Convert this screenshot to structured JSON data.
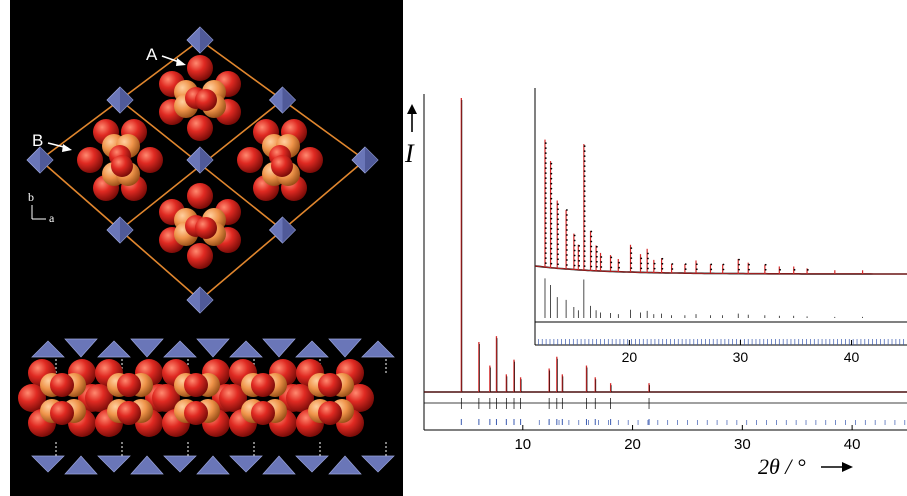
{
  "crystal": {
    "label_a": "A",
    "label_b": "B",
    "axis_b": "b",
    "axis_a": "a",
    "colors": {
      "background": "#000000",
      "cell_edge": "#e0862e",
      "oxygen": "#e02a22",
      "phosphorus": "#f0944a",
      "polyhedron": "#6a76b8",
      "polyhedron_shadow": "#3a4480",
      "arrow": "#ffffff"
    }
  },
  "chart_data": {
    "type": "line",
    "title": "",
    "ylabel": "I",
    "xlabel": "2θ / °",
    "main": {
      "xlim": [
        1.0,
        45.0
      ],
      "xticks": [
        10,
        20,
        30,
        40
      ],
      "peaks": [
        {
          "x": 4.4,
          "y": 1.0
        },
        {
          "x": 6.0,
          "y": 0.17
        },
        {
          "x": 7.0,
          "y": 0.09
        },
        {
          "x": 7.6,
          "y": 0.19
        },
        {
          "x": 8.5,
          "y": 0.06
        },
        {
          "x": 9.2,
          "y": 0.11
        },
        {
          "x": 9.8,
          "y": 0.05
        },
        {
          "x": 12.4,
          "y": 0.08
        },
        {
          "x": 13.1,
          "y": 0.12
        },
        {
          "x": 13.6,
          "y": 0.06
        },
        {
          "x": 15.8,
          "y": 0.09
        },
        {
          "x": 16.6,
          "y": 0.05
        },
        {
          "x": 18.0,
          "y": 0.03
        },
        {
          "x": 21.5,
          "y": 0.03
        }
      ],
      "series": [
        {
          "name": "observed",
          "color": "#000000"
        },
        {
          "name": "calculated",
          "color": "#d42a2a"
        },
        {
          "name": "difference",
          "color": "#000000"
        },
        {
          "name": "reflections",
          "color": "#3a5ab0"
        }
      ]
    },
    "inset": {
      "xlim": [
        11.5,
        45.0
      ],
      "xticks": [
        20,
        30,
        40
      ],
      "peaks": [
        {
          "x": 12.4,
          "y": 0.72
        },
        {
          "x": 12.9,
          "y": 0.6
        },
        {
          "x": 13.5,
          "y": 0.38
        },
        {
          "x": 14.3,
          "y": 0.33
        },
        {
          "x": 15.0,
          "y": 0.2
        },
        {
          "x": 15.4,
          "y": 0.14
        },
        {
          "x": 15.9,
          "y": 0.7
        },
        {
          "x": 16.5,
          "y": 0.22
        },
        {
          "x": 17.0,
          "y": 0.14
        },
        {
          "x": 17.4,
          "y": 0.1
        },
        {
          "x": 18.3,
          "y": 0.09
        },
        {
          "x": 19.0,
          "y": 0.07
        },
        {
          "x": 20.1,
          "y": 0.15
        },
        {
          "x": 21.0,
          "y": 0.1
        },
        {
          "x": 21.6,
          "y": 0.13
        },
        {
          "x": 22.2,
          "y": 0.07
        },
        {
          "x": 22.9,
          "y": 0.08
        },
        {
          "x": 23.8,
          "y": 0.05
        },
        {
          "x": 25.0,
          "y": 0.05
        },
        {
          "x": 26.0,
          "y": 0.07
        },
        {
          "x": 27.3,
          "y": 0.05
        },
        {
          "x": 28.4,
          "y": 0.05
        },
        {
          "x": 29.8,
          "y": 0.08
        },
        {
          "x": 30.7,
          "y": 0.06
        },
        {
          "x": 32.2,
          "y": 0.05
        },
        {
          "x": 33.5,
          "y": 0.04
        },
        {
          "x": 34.8,
          "y": 0.04
        },
        {
          "x": 36.0,
          "y": 0.03
        },
        {
          "x": 38.5,
          "y": 0.02
        },
        {
          "x": 41.0,
          "y": 0.02
        }
      ]
    }
  }
}
